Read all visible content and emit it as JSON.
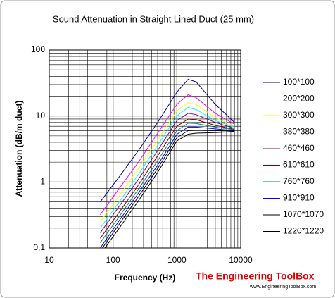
{
  "chart_data": {
    "type": "line",
    "title": "Sound Attenuation in Straight Lined Duct (25 mm)",
    "xlabel": "Frequency (Hz)",
    "ylabel": "Attenuation (dB/m duct)",
    "x": [
      63,
      125,
      250,
      500,
      1000,
      1500,
      2000,
      4000,
      8000
    ],
    "xlim": [
      10,
      10000
    ],
    "xticks": [
      10,
      100,
      1000,
      10000
    ],
    "ylim": [
      0.1,
      100
    ],
    "yticks": [
      {
        "value": 0.1,
        "label": "0,1"
      },
      1,
      10,
      100
    ],
    "xscale": "log",
    "yscale": "log",
    "grid": true,
    "legend": "right",
    "series": [
      {
        "name": "100*100",
        "color": "#000080",
        "values": [
          0.5,
          1.2,
          3,
          8,
          23,
          36,
          33,
          15,
          8
        ]
      },
      {
        "name": "200*200",
        "color": "#ff00ff",
        "values": [
          0.32,
          0.8,
          2,
          5.5,
          15,
          21,
          19,
          11,
          7.5
        ]
      },
      {
        "name": "300*300",
        "color": "#ffff00",
        "values": [
          0.25,
          0.62,
          1.6,
          4.3,
          12,
          16,
          15,
          9.5,
          7
        ]
      },
      {
        "name": "380*380",
        "color": "#00ffff",
        "values": [
          0.2,
          0.5,
          1.3,
          3.6,
          10,
          13.5,
          12.5,
          8.5,
          6.8
        ]
      },
      {
        "name": "460*460",
        "color": "#800080",
        "values": [
          0.17,
          0.43,
          1.1,
          3,
          8.5,
          11,
          10.5,
          8,
          6.5
        ]
      },
      {
        "name": "610*610",
        "color": "#800000",
        "values": [
          0.14,
          0.35,
          0.9,
          2.5,
          7,
          9,
          8.8,
          7.2,
          6.3
        ]
      },
      {
        "name": "760*760",
        "color": "#008080",
        "values": [
          0.12,
          0.3,
          0.78,
          2.1,
          6,
          7.8,
          7.7,
          6.8,
          6.2
        ]
      },
      {
        "name": "910*910",
        "color": "#0000ff",
        "values": [
          0.1,
          0.26,
          0.68,
          1.8,
          5.3,
          6.8,
          6.8,
          6.4,
          6
        ]
      },
      {
        "name": "1070*1070",
        "color": "#000000",
        "values": [
          0.09,
          0.23,
          0.6,
          1.6,
          4.7,
          6,
          6.1,
          6,
          5.9
        ]
      },
      {
        "name": "1220*1220",
        "color": "#000000",
        "values": [
          0.08,
          0.2,
          0.52,
          1.4,
          4.2,
          5.3,
          5.5,
          5.6,
          5.8
        ]
      }
    ],
    "watermark": {
      "title": "The Engineering ToolBox",
      "url": "www.EngineeringToolBox.com"
    }
  }
}
